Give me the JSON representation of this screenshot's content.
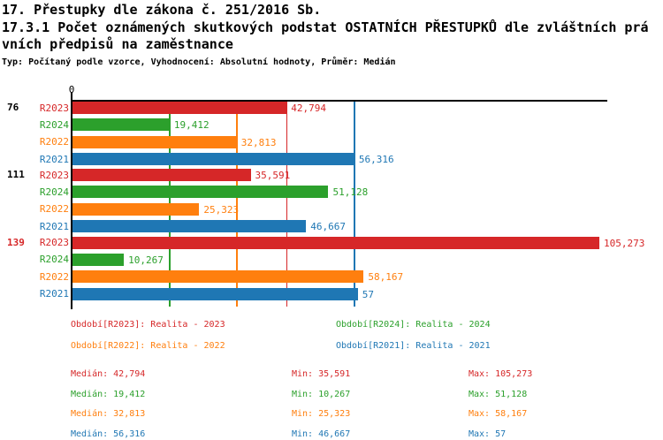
{
  "title": {
    "line1": "17. Přestupky dle zákona č. 251/2016 Sb.",
    "line2": "17.3.1 Počet oznámených skutkových podstat OSTATNÍCH PŘESTUPKŮ dle zvláštních prá",
    "line3": "vních předpisů na zaměstnance",
    "subtitle": "Typ: Počítaný podle vzorce, Vyhodnocení: Absolutní hodnoty, Průměr: Medián"
  },
  "colors": {
    "r2023": "#d62728",
    "r2024": "#2ca02c",
    "r2022": "#ff7f0e",
    "r2021": "#1f77b4",
    "axis": "#000000"
  },
  "chart_data": {
    "type": "bar",
    "orientation": "horizontal",
    "title": "17.3.1 Počet oznámených skutkových podstat OSTATNÍCH PŘESTUPKŮ dle zvláštních právních předpisů na zaměstnance",
    "xlabel": "",
    "ylabel": "",
    "xlim": [
      0,
      110
    ],
    "grid": "vertical median guide lines per series",
    "legend_position": "bottom",
    "x_ticks": [
      {
        "value": 0,
        "label": "0"
      }
    ],
    "series_order": [
      "R2023",
      "R2024",
      "R2022",
      "R2021"
    ],
    "series_colors": {
      "R2023": "#d62728",
      "R2024": "#2ca02c",
      "R2022": "#ff7f0e",
      "R2021": "#1f77b4"
    },
    "groups": [
      {
        "label": "76",
        "label_color": "#000000",
        "bars": [
          {
            "series": "R2023",
            "value": 42.794,
            "label": "42,794"
          },
          {
            "series": "R2024",
            "value": 19.412,
            "label": "19,412"
          },
          {
            "series": "R2022",
            "value": 32.813,
            "label": "32,813"
          },
          {
            "series": "R2021",
            "value": 56.316,
            "label": "56,316"
          }
        ]
      },
      {
        "label": "111",
        "label_color": "#000000",
        "bars": [
          {
            "series": "R2023",
            "value": 35.591,
            "label": "35,591"
          },
          {
            "series": "R2024",
            "value": 51.128,
            "label": "51,128"
          },
          {
            "series": "R2022",
            "value": 25.323,
            "label": "25,323"
          },
          {
            "series": "R2021",
            "value": 46.667,
            "label": "46,667"
          }
        ]
      },
      {
        "label": "139",
        "label_color": "#d62728",
        "bars": [
          {
            "series": "R2023",
            "value": 105.273,
            "label": "105,273"
          },
          {
            "series": "R2024",
            "value": 10.267,
            "label": "10,267"
          },
          {
            "series": "R2022",
            "value": 58.167,
            "label": "58,167"
          },
          {
            "series": "R2021",
            "value": 57.0,
            "label": "57"
          }
        ]
      }
    ],
    "median_lines": [
      {
        "series": "R2023",
        "value": 42.794,
        "color": "#d62728"
      },
      {
        "series": "R2024",
        "value": 19.412,
        "color": "#2ca02c"
      },
      {
        "series": "R2022",
        "value": 32.813,
        "color": "#ff7f0e"
      },
      {
        "series": "R2021",
        "value": 56.316,
        "color": "#1f77b4"
      }
    ]
  },
  "legend": {
    "items": [
      {
        "label": "Období[R2023]: Realita - 2023",
        "color": "#d62728"
      },
      {
        "label": "Období[R2022]: Realita - 2022",
        "color": "#ff7f0e"
      },
      {
        "label": "Období[R2024]: Realita - 2024",
        "color": "#2ca02c"
      },
      {
        "label": "Období[R2021]: Realita - 2021",
        "color": "#1f77b4"
      }
    ]
  },
  "stats": {
    "rows": [
      {
        "median": "Medián: 42,794",
        "min": "Min: 35,591",
        "max": "Max: 105,273",
        "color": "#d62728"
      },
      {
        "median": "Medián: 19,412",
        "min": "Min: 10,267",
        "max": "Max: 51,128",
        "color": "#2ca02c"
      },
      {
        "median": "Medián: 32,813",
        "min": "Min: 25,323",
        "max": "Max: 58,167",
        "color": "#ff7f0e"
      },
      {
        "median": "Medián: 56,316",
        "min": "Min: 46,667",
        "max": "Max: 57",
        "color": "#1f77b4"
      }
    ]
  }
}
